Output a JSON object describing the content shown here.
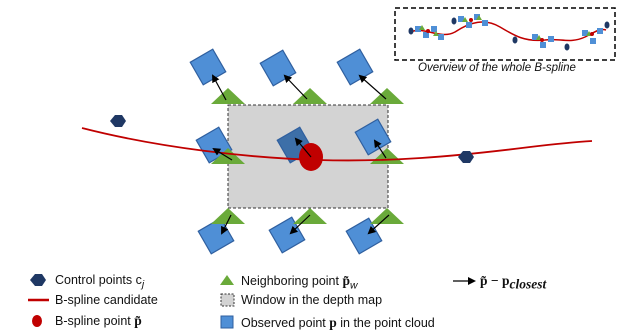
{
  "overview": {
    "caption": "Overview of the whole B-spline"
  },
  "legend": {
    "control_points": "Control points c",
    "control_points_sub": "j",
    "bspline_candidate": "B-spline candidate",
    "bspline_point": "B-spline point ",
    "bspline_point_sym": "p̃",
    "neighboring_point": "Neighboring point ",
    "neighboring_point_sym": "p̃",
    "neighboring_point_sub": "w",
    "window": "Window in the depth map",
    "observed_point_pre": "Observed point ",
    "observed_point_sym": "p",
    "observed_point_post": " in the point cloud",
    "arrow_label_a": "p̃ − ",
    "arrow_label_b": "p",
    "arrow_label_sub": "closest"
  },
  "colors": {
    "window_fill": "#d3d3d3",
    "curve": "#c00000",
    "bspline_point": "#c00000",
    "control_point": "#1f3864",
    "neighbor": "#6aaa3a",
    "observed": "#4f8fd6",
    "observed_stroke": "#2f5f9f"
  }
}
